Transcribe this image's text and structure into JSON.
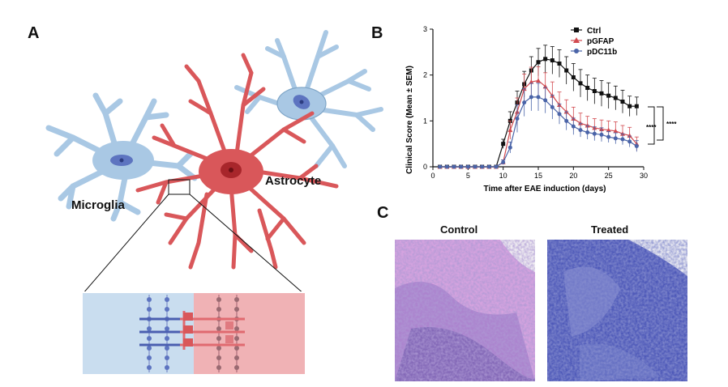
{
  "figure": {
    "panel_a": {
      "letter": "A",
      "microglia_label": "Microglia",
      "astrocyte_label": "Astrocyte",
      "microglia_color": "#a9c8e4",
      "astrocyte_color": "#d9575a",
      "gap_junction_left_color": "#c9ddef",
      "gap_junction_right_color": "#f0b2b5"
    },
    "panel_b": {
      "letter": "B",
      "legend_ctrl": "Ctrl",
      "legend_pgfap": "pGFAP",
      "legend_pdc11b": "pDC11b",
      "significance_1": "****",
      "significance_2": "****"
    },
    "panel_c": {
      "letter": "C",
      "control_title": "Control",
      "treated_title": "Treated",
      "control_colors": [
        "#b07ac8",
        "#6a5aa6",
        "#d6a3df"
      ],
      "treated_colors": [
        "#4d58b8",
        "#3c49a6",
        "#8a8fd2"
      ]
    }
  },
  "chart_data": {
    "type": "line",
    "title": "",
    "xlabel": "Time after EAE induction (days)",
    "ylabel": "Clinical Score (Mean ± SEM)",
    "xlim": [
      0,
      30
    ],
    "ylim": [
      0,
      3
    ],
    "xticks": [
      "0",
      "5",
      "10",
      "15",
      "20",
      "25",
      "30"
    ],
    "yticks": [
      "0",
      "1",
      "2",
      "3"
    ],
    "x": [
      1,
      2,
      3,
      4,
      5,
      6,
      7,
      8,
      9,
      10,
      11,
      12,
      13,
      14,
      15,
      16,
      17,
      18,
      19,
      20,
      21,
      22,
      23,
      24,
      25,
      26,
      27,
      28,
      29
    ],
    "series": [
      {
        "name": "Ctrl",
        "color": "#111111",
        "marker": "square",
        "values": [
          0,
          0,
          0,
          0,
          0,
          0,
          0,
          0,
          0,
          0.5,
          1.0,
          1.4,
          1.8,
          2.1,
          2.28,
          2.35,
          2.32,
          2.25,
          2.1,
          1.95,
          1.82,
          1.72,
          1.65,
          1.6,
          1.55,
          1.5,
          1.42,
          1.32,
          1.32
        ],
        "errors": [
          0,
          0,
          0,
          0,
          0,
          0,
          0,
          0,
          0,
          0.1,
          0.2,
          0.25,
          0.28,
          0.3,
          0.3,
          0.3,
          0.3,
          0.3,
          0.3,
          0.3,
          0.3,
          0.28,
          0.28,
          0.28,
          0.28,
          0.26,
          0.25,
          0.22,
          0.2
        ]
      },
      {
        "name": "pGFAP",
        "color": "#d24a4f",
        "marker": "triangle",
        "values": [
          0,
          0,
          0,
          0,
          0,
          0,
          0,
          0,
          0,
          0.1,
          0.8,
          1.2,
          1.7,
          1.85,
          1.88,
          1.75,
          1.55,
          1.35,
          1.2,
          1.05,
          0.95,
          0.9,
          0.85,
          0.82,
          0.8,
          0.78,
          0.72,
          0.68,
          0.5
        ],
        "errors": [
          0,
          0,
          0,
          0,
          0,
          0,
          0,
          0,
          0,
          0.05,
          0.2,
          0.3,
          0.32,
          0.32,
          0.3,
          0.3,
          0.3,
          0.28,
          0.26,
          0.25,
          0.22,
          0.2,
          0.2,
          0.2,
          0.2,
          0.2,
          0.18,
          0.18,
          0.15
        ]
      },
      {
        "name": "pDC11b",
        "color": "#4a64a8",
        "marker": "circle",
        "values": [
          0,
          0,
          0,
          0,
          0,
          0,
          0,
          0,
          0,
          0.1,
          0.42,
          1.05,
          1.4,
          1.52,
          1.52,
          1.45,
          1.3,
          1.15,
          1.0,
          0.88,
          0.8,
          0.75,
          0.72,
          0.7,
          0.65,
          0.62,
          0.6,
          0.55,
          0.45
        ],
        "errors": [
          0,
          0,
          0,
          0,
          0,
          0,
          0,
          0,
          0,
          0.05,
          0.12,
          0.3,
          0.3,
          0.3,
          0.3,
          0.28,
          0.26,
          0.22,
          0.2,
          0.18,
          0.15,
          0.15,
          0.15,
          0.15,
          0.12,
          0.12,
          0.12,
          0.12,
          0.12
        ]
      }
    ],
    "grid": false,
    "legend_position": "top-right"
  }
}
